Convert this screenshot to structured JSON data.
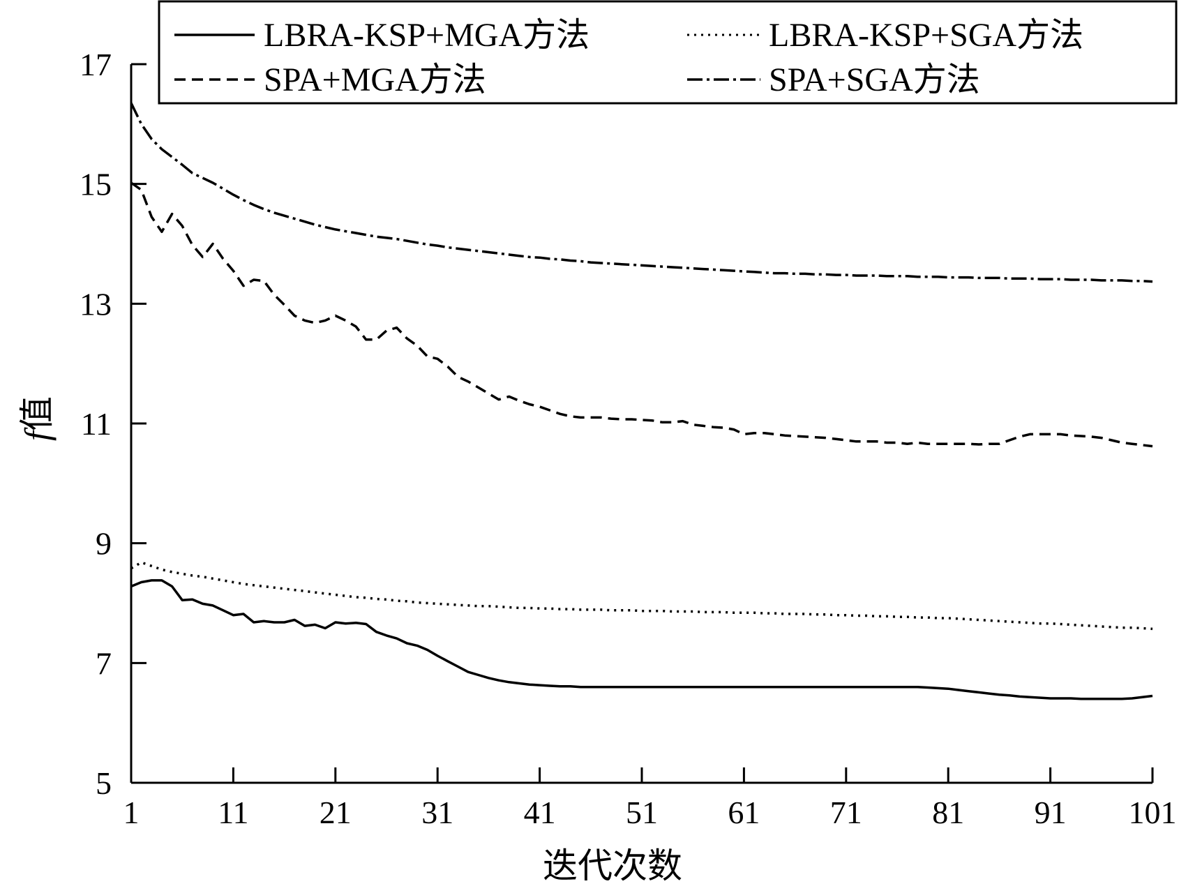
{
  "chart_data": {
    "type": "line",
    "title": "",
    "xlabel": "迭代次数",
    "ylabel_italic": "f",
    "ylabel_suffix": "值",
    "xlim": [
      1,
      101
    ],
    "ylim": [
      5,
      17
    ],
    "xticks": [
      1,
      11,
      21,
      31,
      41,
      51,
      61,
      71,
      81,
      91,
      101
    ],
    "yticks": [
      5,
      7,
      9,
      11,
      13,
      15,
      17
    ],
    "grid": false,
    "legend_position": "top",
    "series": [
      {
        "name": "LBRA-KSP+MGA方法",
        "style": "solid",
        "x": [
          1,
          2,
          3,
          4,
          5,
          6,
          7,
          8,
          9,
          10,
          11,
          12,
          13,
          14,
          15,
          16,
          17,
          18,
          19,
          20,
          21,
          22,
          23,
          24,
          25,
          26,
          27,
          28,
          29,
          30,
          31,
          32,
          33,
          34,
          35,
          36,
          37,
          38,
          39,
          40,
          41,
          42,
          43,
          44,
          45,
          46,
          47,
          48,
          49,
          50,
          51,
          52,
          53,
          54,
          55,
          56,
          57,
          58,
          59,
          60,
          61,
          62,
          63,
          64,
          65,
          66,
          67,
          68,
          69,
          70,
          71,
          72,
          73,
          74,
          75,
          76,
          77,
          78,
          79,
          80,
          81,
          82,
          83,
          84,
          85,
          86,
          87,
          88,
          89,
          90,
          91,
          92,
          93,
          94,
          95,
          96,
          97,
          98,
          99,
          100,
          101
        ],
        "y": [
          8.28,
          8.35,
          8.38,
          8.38,
          8.28,
          8.05,
          8.06,
          7.99,
          7.96,
          7.88,
          7.8,
          7.82,
          7.68,
          7.7,
          7.68,
          7.68,
          7.72,
          7.62,
          7.64,
          7.58,
          7.68,
          7.66,
          7.67,
          7.65,
          7.52,
          7.46,
          7.41,
          7.33,
          7.29,
          7.22,
          7.12,
          7.03,
          6.94,
          6.85,
          6.8,
          6.75,
          6.71,
          6.68,
          6.66,
          6.64,
          6.63,
          6.62,
          6.61,
          6.61,
          6.6,
          6.6,
          6.6,
          6.6,
          6.6,
          6.6,
          6.6,
          6.6,
          6.6,
          6.6,
          6.6,
          6.6,
          6.6,
          6.6,
          6.6,
          6.6,
          6.6,
          6.6,
          6.6,
          6.6,
          6.6,
          6.6,
          6.6,
          6.6,
          6.6,
          6.6,
          6.6,
          6.6,
          6.6,
          6.6,
          6.6,
          6.6,
          6.6,
          6.6,
          6.59,
          6.58,
          6.57,
          6.55,
          6.53,
          6.51,
          6.49,
          6.47,
          6.46,
          6.44,
          6.43,
          6.42,
          6.41,
          6.41,
          6.41,
          6.4,
          6.4,
          6.4,
          6.4,
          6.4,
          6.41,
          6.43,
          6.45
        ]
      },
      {
        "name": "LBRA-KSP+SGA方法",
        "style": "dotted",
        "x": [
          1,
          2,
          3,
          4,
          5,
          6,
          7,
          8,
          9,
          10,
          11,
          12,
          13,
          14,
          15,
          16,
          17,
          18,
          19,
          20,
          21,
          22,
          23,
          24,
          25,
          26,
          27,
          28,
          29,
          30,
          31,
          32,
          33,
          34,
          35,
          36,
          37,
          38,
          39,
          40,
          41,
          42,
          43,
          44,
          45,
          46,
          47,
          48,
          49,
          50,
          51,
          52,
          53,
          54,
          55,
          56,
          57,
          58,
          59,
          60,
          61,
          62,
          63,
          64,
          65,
          66,
          67,
          68,
          69,
          70,
          71,
          72,
          73,
          74,
          75,
          76,
          77,
          78,
          79,
          80,
          81,
          82,
          83,
          84,
          85,
          86,
          87,
          88,
          89,
          90,
          91,
          92,
          93,
          94,
          95,
          96,
          97,
          98,
          99,
          100,
          101
        ],
        "y": [
          8.58,
          8.68,
          8.62,
          8.56,
          8.52,
          8.49,
          8.46,
          8.44,
          8.41,
          8.38,
          8.35,
          8.32,
          8.3,
          8.28,
          8.26,
          8.24,
          8.22,
          8.2,
          8.18,
          8.16,
          8.14,
          8.12,
          8.1,
          8.09,
          8.07,
          8.06,
          8.04,
          8.03,
          8.01,
          8.0,
          7.99,
          7.98,
          7.97,
          7.96,
          7.95,
          7.95,
          7.94,
          7.93,
          7.92,
          7.92,
          7.91,
          7.91,
          7.9,
          7.9,
          7.89,
          7.89,
          7.89,
          7.88,
          7.88,
          7.88,
          7.87,
          7.87,
          7.87,
          7.86,
          7.86,
          7.86,
          7.85,
          7.85,
          7.85,
          7.84,
          7.84,
          7.84,
          7.83,
          7.83,
          7.82,
          7.82,
          7.82,
          7.81,
          7.81,
          7.8,
          7.8,
          7.79,
          7.79,
          7.78,
          7.78,
          7.77,
          7.77,
          7.76,
          7.76,
          7.75,
          7.75,
          7.74,
          7.73,
          7.72,
          7.71,
          7.7,
          7.69,
          7.68,
          7.67,
          7.66,
          7.66,
          7.65,
          7.64,
          7.63,
          7.62,
          7.61,
          7.6,
          7.59,
          7.59,
          7.58,
          7.57
        ]
      },
      {
        "name": "SPA+MGA方法",
        "style": "dashed",
        "x": [
          1,
          2,
          3,
          4,
          5,
          6,
          7,
          8,
          9,
          10,
          11,
          12,
          13,
          14,
          15,
          16,
          17,
          18,
          19,
          20,
          21,
          22,
          23,
          24,
          25,
          26,
          27,
          28,
          29,
          30,
          31,
          32,
          33,
          34,
          35,
          36,
          37,
          38,
          39,
          40,
          41,
          42,
          43,
          44,
          45,
          46,
          47,
          48,
          49,
          50,
          51,
          52,
          53,
          54,
          55,
          56,
          57,
          58,
          59,
          60,
          61,
          62,
          63,
          64,
          65,
          66,
          67,
          68,
          69,
          70,
          71,
          72,
          73,
          74,
          75,
          76,
          77,
          78,
          79,
          80,
          81,
          82,
          83,
          84,
          85,
          86,
          87,
          88,
          89,
          90,
          91,
          92,
          93,
          94,
          95,
          96,
          97,
          98,
          99,
          100,
          101
        ],
        "y": [
          15.02,
          14.9,
          14.45,
          14.2,
          14.5,
          14.3,
          13.98,
          13.78,
          14.0,
          13.75,
          13.55,
          13.3,
          13.4,
          13.38,
          13.15,
          12.98,
          12.8,
          12.72,
          12.68,
          12.72,
          12.8,
          12.72,
          12.62,
          12.4,
          12.4,
          12.55,
          12.6,
          12.42,
          12.3,
          12.12,
          12.08,
          11.95,
          11.78,
          11.7,
          11.6,
          11.5,
          11.4,
          11.45,
          11.38,
          11.32,
          11.28,
          11.22,
          11.16,
          11.12,
          11.1,
          11.1,
          11.1,
          11.08,
          11.07,
          11.07,
          11.06,
          11.05,
          11.02,
          11.02,
          11.04,
          10.98,
          10.96,
          10.94,
          10.93,
          10.9,
          10.82,
          10.84,
          10.84,
          10.82,
          10.8,
          10.79,
          10.78,
          10.77,
          10.76,
          10.74,
          10.72,
          10.7,
          10.7,
          10.7,
          10.68,
          10.68,
          10.66,
          10.68,
          10.66,
          10.66,
          10.66,
          10.66,
          10.66,
          10.65,
          10.66,
          10.66,
          10.72,
          10.78,
          10.82,
          10.82,
          10.82,
          10.82,
          10.8,
          10.79,
          10.78,
          10.76,
          10.72,
          10.68,
          10.66,
          10.64,
          10.62
        ]
      },
      {
        "name": "SPA+SGA方法",
        "style": "dashdot",
        "x": [
          1,
          2,
          3,
          4,
          5,
          6,
          7,
          8,
          9,
          10,
          11,
          12,
          13,
          14,
          15,
          16,
          17,
          18,
          19,
          20,
          21,
          22,
          23,
          24,
          25,
          26,
          27,
          28,
          29,
          30,
          31,
          32,
          33,
          34,
          35,
          36,
          37,
          38,
          39,
          40,
          41,
          42,
          43,
          44,
          45,
          46,
          47,
          48,
          49,
          50,
          51,
          52,
          53,
          54,
          55,
          56,
          57,
          58,
          59,
          60,
          61,
          62,
          63,
          64,
          65,
          66,
          67,
          68,
          69,
          70,
          71,
          72,
          73,
          74,
          75,
          76,
          77,
          78,
          79,
          80,
          81,
          82,
          83,
          84,
          85,
          86,
          87,
          88,
          89,
          90,
          91,
          92,
          93,
          94,
          95,
          96,
          97,
          98,
          99,
          100,
          101
        ],
        "y": [
          16.35,
          16.0,
          15.75,
          15.58,
          15.45,
          15.32,
          15.18,
          15.1,
          15.02,
          14.92,
          14.82,
          14.73,
          14.65,
          14.58,
          14.52,
          14.47,
          14.42,
          14.37,
          14.32,
          14.28,
          14.24,
          14.21,
          14.18,
          14.15,
          14.12,
          14.1,
          14.08,
          14.05,
          14.02,
          13.99,
          13.97,
          13.94,
          13.92,
          13.9,
          13.88,
          13.86,
          13.84,
          13.82,
          13.8,
          13.78,
          13.77,
          13.75,
          13.74,
          13.72,
          13.71,
          13.69,
          13.68,
          13.67,
          13.66,
          13.65,
          13.64,
          13.63,
          13.62,
          13.61,
          13.6,
          13.59,
          13.58,
          13.57,
          13.56,
          13.55,
          13.54,
          13.53,
          13.52,
          13.51,
          13.51,
          13.5,
          13.5,
          13.49,
          13.49,
          13.48,
          13.48,
          13.47,
          13.47,
          13.47,
          13.46,
          13.46,
          13.46,
          13.45,
          13.45,
          13.45,
          13.44,
          13.44,
          13.44,
          13.43,
          13.43,
          13.43,
          13.42,
          13.42,
          13.42,
          13.41,
          13.41,
          13.41,
          13.4,
          13.4,
          13.4,
          13.39,
          13.39,
          13.39,
          13.38,
          13.38,
          13.37
        ]
      }
    ]
  }
}
